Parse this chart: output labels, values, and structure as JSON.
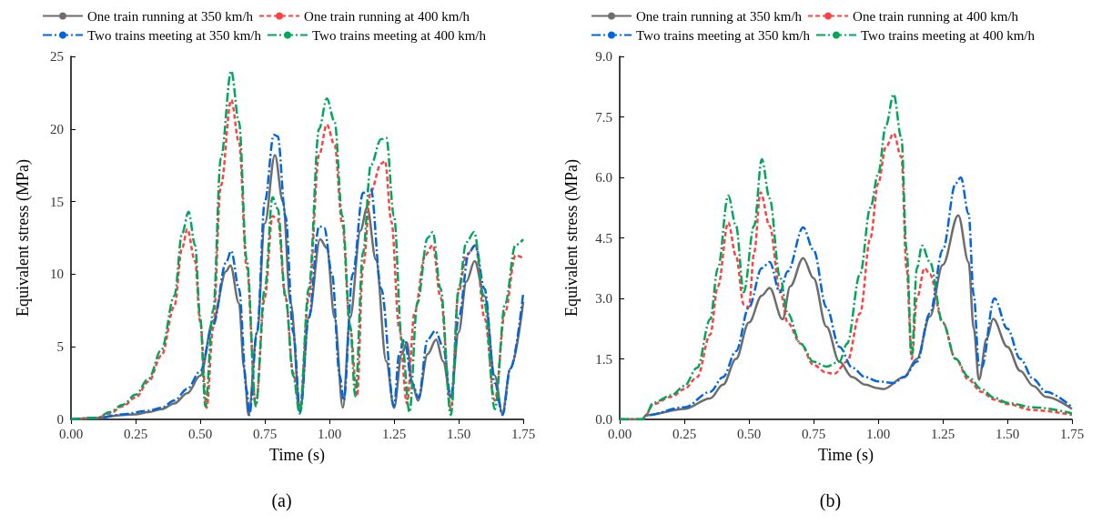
{
  "chart_data": [
    {
      "type": "line",
      "xlabel": "Time (s)",
      "ylabel": "Equivalent stress (MPa)",
      "annotations": [
        "(a)"
      ],
      "xlim": [
        0,
        1.75
      ],
      "ylim": [
        0,
        25
      ],
      "xticks": [
        {
          "value": 0,
          "label": "0.00"
        },
        {
          "value": 0.25,
          "label": "0.25"
        },
        {
          "value": 0.5,
          "label": "0.50"
        },
        {
          "value": 0.75,
          "label": "0.75"
        },
        {
          "value": 1,
          "label": "1.00"
        },
        {
          "value": 1.25,
          "label": "1.25"
        },
        {
          "value": 1.5,
          "label": "1.50"
        },
        {
          "value": 1.75,
          "label": "1.75"
        }
      ],
      "yticks": [
        0,
        5,
        10,
        15,
        20,
        25
      ],
      "grid": false,
      "legend": "top",
      "marker": "none",
      "series": [
        {
          "name": "One train running at 350 km/h",
          "color": "#6d6d6d",
          "line_style": "solid",
          "x": [
            0,
            0.1,
            0.2,
            0.25,
            0.3,
            0.35,
            0.4,
            0.45,
            0.5,
            0.55,
            0.6,
            0.617,
            0.65,
            0.67,
            0.687,
            0.72,
            0.75,
            0.789,
            0.82,
            0.85,
            0.887,
            0.92,
            0.964,
            0.99,
            1.02,
            1.052,
            1.08,
            1.12,
            1.146,
            1.18,
            1.22,
            1.25,
            1.28,
            1.3,
            1.32,
            1.343,
            1.38,
            1.413,
            1.44,
            1.47,
            1.5,
            1.53,
            1.562,
            1.6,
            1.64,
            1.669,
            1.7,
            1.75
          ],
          "values": [
            0,
            0.1,
            0.3,
            0.35,
            0.5,
            0.7,
            1.1,
            1.8,
            3.0,
            6.8,
            10.2,
            10.6,
            8.0,
            3.5,
            0.3,
            6,
            13.5,
            18.2,
            15,
            8,
            0.7,
            7,
            12.4,
            11.8,
            7,
            0.8,
            7,
            13,
            14.6,
            11,
            4,
            0.8,
            4.5,
            5.3,
            2.5,
            1.3,
            4.5,
            5.5,
            4,
            1.5,
            6,
            9.5,
            10.9,
            8.5,
            3,
            0.4,
            3.5,
            8.1
          ]
        },
        {
          "name": "One train running at 400 km/h",
          "color": "#ff4040",
          "line_style": "dashed",
          "x": [
            0,
            0.1,
            0.15,
            0.2,
            0.25,
            0.3,
            0.35,
            0.4,
            0.43,
            0.45,
            0.48,
            0.5,
            0.525,
            0.55,
            0.58,
            0.62,
            0.65,
            0.68,
            0.715,
            0.75,
            0.78,
            0.8,
            0.83,
            0.86,
            0.885,
            0.92,
            0.96,
            0.99,
            1.02,
            1.05,
            1.08,
            1.107,
            1.13,
            1.16,
            1.2,
            1.215,
            1.24,
            1.27,
            1.3,
            1.33,
            1.37,
            1.4,
            1.43,
            1.47,
            1.5,
            1.53,
            1.565,
            1.6,
            1.64,
            1.68,
            1.72,
            1.75
          ],
          "values": [
            0,
            0.1,
            0.4,
            0.9,
            1.5,
            2.6,
            4.4,
            7.8,
            11.8,
            13.1,
            10.9,
            6.7,
            0.8,
            6.3,
            16.1,
            22.0,
            19.1,
            10.5,
            1.0,
            8.4,
            14.0,
            13.8,
            8.4,
            3.2,
            0.7,
            8.4,
            18.2,
            20.3,
            18.9,
            13.4,
            6.3,
            1.6,
            10.5,
            15.7,
            17.6,
            17.8,
            13.6,
            6.3,
            1.1,
            7.4,
            11.3,
            12.0,
            8.4,
            0.7,
            8.8,
            11.3,
            12.0,
            7.0,
            1.3,
            7.4,
            11.3,
            11.1
          ]
        },
        {
          "name": "Two trains meeting at 350 km/h",
          "color": "#0066dd",
          "line_style": "dashdot",
          "x": [
            0,
            0.1,
            0.2,
            0.3,
            0.35,
            0.4,
            0.45,
            0.5,
            0.55,
            0.6,
            0.62,
            0.65,
            0.68,
            0.69,
            0.72,
            0.75,
            0.785,
            0.8,
            0.83,
            0.86,
            0.887,
            0.92,
            0.96,
            0.98,
            1.01,
            1.04,
            1.055,
            1.09,
            1.13,
            1.16,
            1.2,
            1.25,
            1.27,
            1.29,
            1.32,
            1.345,
            1.38,
            1.41,
            1.44,
            1.47,
            1.5,
            1.54,
            1.565,
            1.6,
            1.64,
            1.67,
            1.7,
            1.75
          ],
          "values": [
            0,
            0.1,
            0.35,
            0.6,
            0.8,
            1.3,
            2.1,
            3.3,
            6.5,
            10.8,
            11.6,
            9,
            2,
            0.3,
            6,
            15,
            19.6,
            19.5,
            14,
            6,
            0.5,
            7,
            13.3,
            13.2,
            10,
            3,
            1.3,
            10,
            15.6,
            15.9,
            9,
            0.9,
            4.5,
            5.5,
            2.5,
            1.5,
            5.5,
            6.1,
            5,
            1.5,
            7,
            11.5,
            12.0,
            9,
            2.5,
            0.3,
            3.5,
            8.7
          ]
        },
        {
          "name": "Two trains meeting at 400 km/h",
          "color": "#00a65a",
          "line_style": "dashdot",
          "x": [
            0,
            0.1,
            0.15,
            0.2,
            0.25,
            0.3,
            0.35,
            0.4,
            0.43,
            0.455,
            0.48,
            0.5,
            0.52,
            0.55,
            0.58,
            0.62,
            0.65,
            0.68,
            0.715,
            0.75,
            0.78,
            0.8,
            0.83,
            0.86,
            0.885,
            0.92,
            0.96,
            0.99,
            1.02,
            1.05,
            1.08,
            1.1,
            1.13,
            1.16,
            1.2,
            1.22,
            1.25,
            1.28,
            1.31,
            1.34,
            1.38,
            1.4,
            1.43,
            1.47,
            1.5,
            1.53,
            1.56,
            1.6,
            1.64,
            1.68,
            1.72,
            1.75
          ],
          "values": [
            0,
            0.1,
            0.5,
            1.0,
            1.7,
            2.8,
            4.8,
            8.5,
            12.8,
            14.3,
            12,
            7,
            0.9,
            7.5,
            18,
            24.0,
            20.5,
            11,
            0.9,
            9,
            15.3,
            14.5,
            8.5,
            3,
            0.4,
            9,
            20,
            22.1,
            20.5,
            14,
            6.5,
            1.6,
            11.5,
            17.5,
            19.3,
            19.4,
            14,
            5.5,
            0.5,
            8,
            12.5,
            12.9,
            9,
            0.3,
            9,
            12.2,
            12.9,
            8,
            0.7,
            8,
            12,
            12.4
          ]
        }
      ]
    },
    {
      "type": "line",
      "xlabel": "Time (s)",
      "ylabel": "Equivalent stress (MPa)",
      "annotations": [
        "(b)"
      ],
      "xlim": [
        0,
        1.75
      ],
      "ylim": [
        0,
        9
      ],
      "xticks": [
        {
          "value": 0,
          "label": "0.00"
        },
        {
          "value": 0.25,
          "label": "0.25"
        },
        {
          "value": 0.5,
          "label": "0.50"
        },
        {
          "value": 0.75,
          "label": "0.75"
        },
        {
          "value": 1,
          "label": "1.00"
        },
        {
          "value": 1.25,
          "label": "1.25"
        },
        {
          "value": 1.5,
          "label": "1.50"
        },
        {
          "value": 1.75,
          "label": "1.75"
        }
      ],
      "yticks": [
        {
          "value": 0,
          "label": "0.0"
        },
        1.5,
        {
          "value": 3,
          "label": "3.0"
        },
        4.5,
        {
          "value": 6,
          "label": "6.0"
        },
        7.5,
        {
          "value": 9,
          "label": "9.0"
        }
      ],
      "grid": false,
      "legend": "top",
      "marker": "none",
      "series": [
        {
          "name": "One train running at 350 km/h",
          "color": "#6d6d6d",
          "line_style": "solid",
          "x": [
            0,
            0.09,
            0.1,
            0.25,
            0.35,
            0.4,
            0.45,
            0.5,
            0.55,
            0.58,
            0.63,
            0.66,
            0.71,
            0.75,
            0.8,
            0.85,
            0.9,
            0.95,
            1.0,
            1.02,
            1.1,
            1.15,
            1.2,
            1.25,
            1.31,
            1.35,
            1.37,
            1.39,
            1.42,
            1.445,
            1.5,
            1.55,
            1.6,
            1.65,
            1.75
          ],
          "values": [
            0,
            0,
            0.1,
            0.26,
            0.52,
            0.86,
            1.5,
            2.4,
            3.07,
            3.26,
            2.48,
            3.3,
            4.0,
            3.5,
            2.3,
            1.43,
            1.05,
            0.86,
            0.77,
            0.75,
            1.05,
            1.5,
            2.55,
            3.83,
            5.06,
            3.9,
            2.25,
            0.98,
            2.0,
            2.49,
            1.8,
            1.2,
            0.83,
            0.56,
            0.26
          ]
        },
        {
          "name": "One train running at 400 km/h",
          "color": "#ff4040",
          "line_style": "dashed",
          "x": [
            0,
            0.09,
            0.1,
            0.13,
            0.2,
            0.25,
            0.3,
            0.35,
            0.38,
            0.42,
            0.45,
            0.48,
            0.5,
            0.52,
            0.545,
            0.58,
            0.62,
            0.65,
            0.7,
            0.75,
            0.8,
            0.83,
            0.88,
            0.93,
            0.97,
            1.0,
            1.03,
            1.06,
            1.09,
            1.11,
            1.13,
            1.15,
            1.18,
            1.2,
            1.25,
            1.3,
            1.35,
            1.4,
            1.45,
            1.5,
            1.6,
            1.75
          ],
          "values": [
            0,
            0,
            0.1,
            0.38,
            0.56,
            0.75,
            1.05,
            2.1,
            3.3,
            4.88,
            4.05,
            2.85,
            2.78,
            4.13,
            5.63,
            4.8,
            3.2,
            2.4,
            1.88,
            1.35,
            1.16,
            1.13,
            1.43,
            2.63,
            4.5,
            5.85,
            6.75,
            7.09,
            6.5,
            3.75,
            1.5,
            3.0,
            3.75,
            3.6,
            2.4,
            1.5,
            0.98,
            0.68,
            0.49,
            0.38,
            0.23,
            0.11
          ]
        },
        {
          "name": "Two trains meeting at 350 km/h",
          "color": "#0066dd",
          "line_style": "dashdot",
          "x": [
            0,
            0.09,
            0.1,
            0.25,
            0.35,
            0.4,
            0.45,
            0.5,
            0.55,
            0.58,
            0.62,
            0.65,
            0.71,
            0.75,
            0.8,
            0.85,
            0.9,
            0.95,
            1.0,
            1.06,
            1.1,
            1.15,
            1.2,
            1.25,
            1.3,
            1.32,
            1.35,
            1.37,
            1.39,
            1.4,
            1.45,
            1.5,
            1.55,
            1.6,
            1.65,
            1.75
          ],
          "values": [
            0,
            0,
            0.1,
            0.3,
            0.68,
            1.05,
            1.69,
            2.78,
            3.75,
            3.9,
            3.15,
            3.67,
            4.76,
            4.2,
            2.78,
            1.8,
            1.28,
            1.05,
            0.94,
            0.9,
            1.05,
            1.43,
            2.63,
            4.2,
            5.85,
            6.0,
            5.1,
            3.08,
            1.35,
            1.28,
            3.0,
            2.25,
            1.5,
            1.0,
            0.68,
            0.3
          ]
        },
        {
          "name": "Two trains meeting at 400 km/h",
          "color": "#00a65a",
          "line_style": "dashdot",
          "x": [
            0,
            0.09,
            0.1,
            0.13,
            0.2,
            0.25,
            0.3,
            0.35,
            0.38,
            0.42,
            0.45,
            0.48,
            0.52,
            0.55,
            0.58,
            0.62,
            0.65,
            0.7,
            0.75,
            0.8,
            0.85,
            0.88,
            0.93,
            0.97,
            1.0,
            1.03,
            1.06,
            1.09,
            1.11,
            1.13,
            1.15,
            1.17,
            1.2,
            1.25,
            1.3,
            1.35,
            1.4,
            1.45,
            1.5,
            1.6,
            1.75
          ],
          "values": [
            0,
            0,
            0.1,
            0.41,
            0.6,
            0.83,
            1.28,
            2.48,
            3.75,
            5.55,
            4.8,
            3.15,
            4.8,
            6.45,
            5.48,
            3.53,
            2.63,
            1.88,
            1.43,
            1.31,
            1.43,
            1.88,
            3.6,
            5.25,
            6.08,
            7.28,
            8.06,
            6.98,
            4.2,
            1.58,
            3.75,
            4.31,
            3.9,
            2.4,
            1.5,
            1.05,
            0.75,
            0.53,
            0.41,
            0.3,
            0.15
          ]
        }
      ]
    }
  ]
}
